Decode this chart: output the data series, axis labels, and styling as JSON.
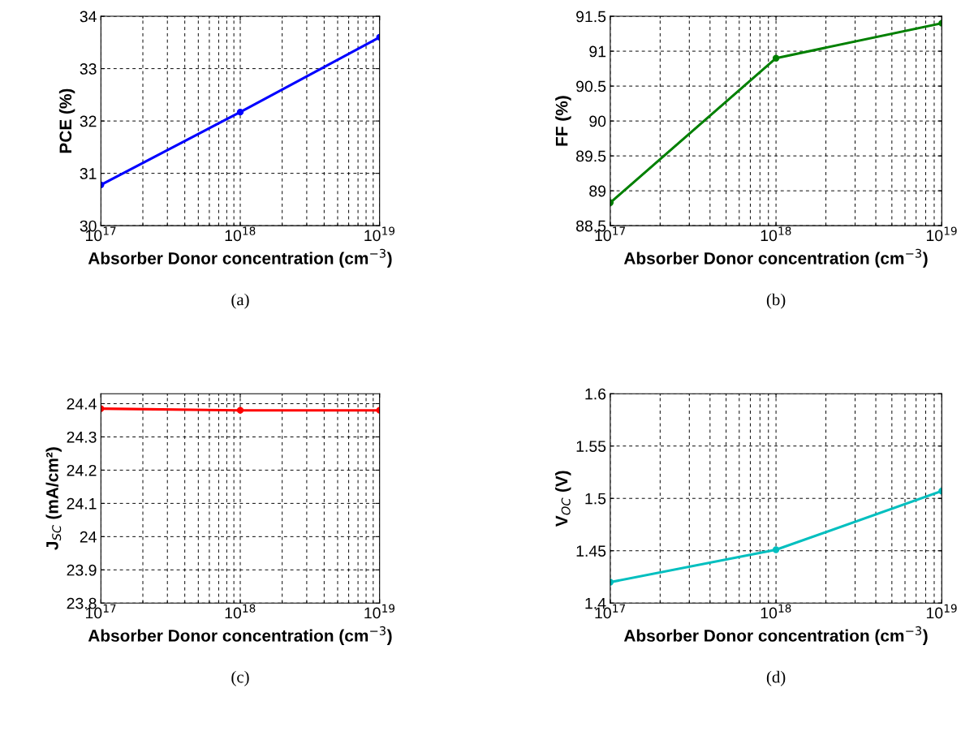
{
  "chart_data": [
    {
      "type": "line",
      "xlabel": "Absorber Donor concentration (cm$^{−3}$)",
      "ylabel": "PCE (%)",
      "x": [
        1e+17,
        1e+18,
        1e+19
      ],
      "series": [
        {
          "color": "#0000ff",
          "values": [
            30.78,
            32.17,
            33.6
          ]
        }
      ],
      "log": "x",
      "xlim": [
        1e+17,
        1e+19
      ],
      "xticks": [
        {
          "value": 1e+17,
          "label": "10$^{17}$"
        },
        {
          "value": 1e+18,
          "label": "10$^{18}$"
        },
        {
          "value": 1e+19,
          "label": "10$^{19}$"
        }
      ],
      "ylim": [
        30,
        34
      ],
      "yticks": [
        30,
        31,
        32,
        33,
        34
      ],
      "grid": true,
      "marker": "circle",
      "line_style": "solid",
      "annotations": [
        "(a)"
      ]
    },
    {
      "type": "line",
      "xlabel": "Absorber Donor concentration (cm$^{−3}$)",
      "ylabel": "FF (%)",
      "x": [
        1e+17,
        1e+18,
        1e+19
      ],
      "series": [
        {
          "color": "#008000",
          "values": [
            88.83,
            90.9,
            91.4
          ]
        }
      ],
      "log": "x",
      "xlim": [
        1e+17,
        1e+19
      ],
      "xticks": [
        {
          "value": 1e+17,
          "label": "10$^{17}$"
        },
        {
          "value": 1e+18,
          "label": "10$^{18}$"
        },
        {
          "value": 1e+19,
          "label": "10$^{19}$"
        }
      ],
      "ylim": [
        88.5,
        91.5
      ],
      "yticks": [
        88.5,
        89,
        89.5,
        90,
        90.5,
        91,
        91.5
      ],
      "grid": true,
      "marker": "circle",
      "line_style": "solid",
      "annotations": [
        "(b)"
      ]
    },
    {
      "type": "line",
      "xlabel": "Absorber Donor concentration (cm$^{−3}$)",
      "ylabel": "J$_{SC}$ (mA/cm²)",
      "x": [
        1e+17,
        1e+18,
        1e+19
      ],
      "series": [
        {
          "color": "#ff0000",
          "values": [
            24.385,
            24.38,
            24.38
          ]
        }
      ],
      "log": "x",
      "xlim": [
        1e+17,
        1e+19
      ],
      "xticks": [
        {
          "value": 1e+17,
          "label": "10$^{17}$"
        },
        {
          "value": 1e+18,
          "label": "10$^{18}$"
        },
        {
          "value": 1e+19,
          "label": "10$^{19}$"
        }
      ],
      "ylim": [
        23.8,
        24.43
      ],
      "yticks": [
        23.8,
        23.9,
        24,
        24.1,
        24.2,
        24.3,
        24.4
      ],
      "grid": true,
      "marker": "circle",
      "line_style": "solid",
      "annotations": [
        "(c)"
      ]
    },
    {
      "type": "line",
      "xlabel": "Absorber Donor concentration (cm$^{−3}$)",
      "ylabel": "V$_{OC}$ (V)",
      "x": [
        1e+17,
        1e+18,
        1e+19
      ],
      "series": [
        {
          "color": "#00bfbf",
          "values": [
            1.42,
            1.451,
            1.507
          ]
        }
      ],
      "log": "x",
      "xlim": [
        1e+17,
        1e+19
      ],
      "xticks": [
        {
          "value": 1e+17,
          "label": "10$^{17}$"
        },
        {
          "value": 1e+18,
          "label": "10$^{18}$"
        },
        {
          "value": 1e+19,
          "label": "10$^{19}$"
        }
      ],
      "ylim": [
        1.4,
        1.6
      ],
      "yticks": [
        1.4,
        1.45,
        1.5,
        1.55,
        1.6
      ],
      "grid": true,
      "marker": "circle",
      "line_style": "solid",
      "annotations": [
        "(d)"
      ]
    }
  ]
}
